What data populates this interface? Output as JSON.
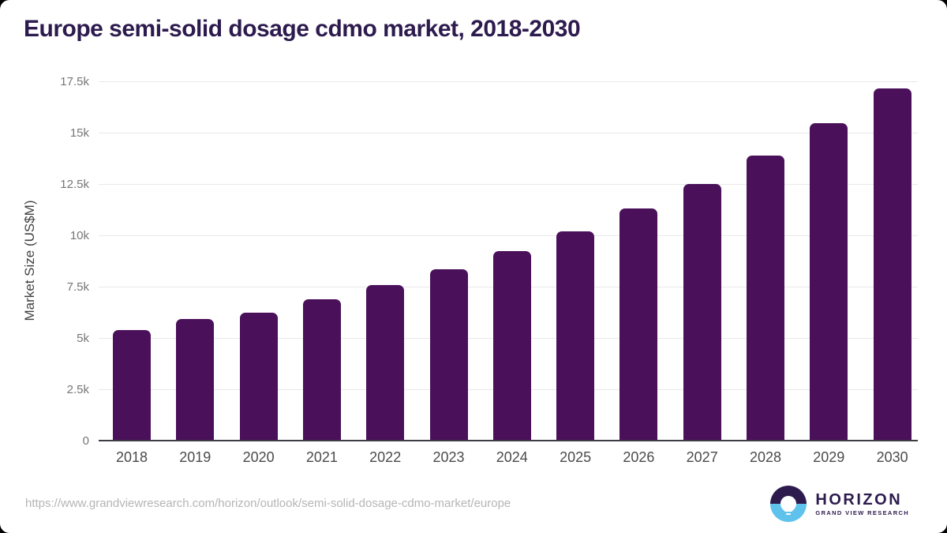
{
  "title": "Europe semi-solid dosage cdmo market, 2018-2030",
  "chart_data": {
    "type": "bar",
    "categories": [
      "2018",
      "2019",
      "2020",
      "2021",
      "2022",
      "2023",
      "2024",
      "2025",
      "2026",
      "2027",
      "2028",
      "2029",
      "2030"
    ],
    "values": [
      5370,
      5920,
      6250,
      6880,
      7590,
      8350,
      9220,
      10180,
      11310,
      12510,
      13870,
      15450,
      17170
    ],
    "title": "Europe semi-solid dosage cdmo market, 2018-2030",
    "xlabel": "",
    "ylabel": "Market Size (US$M)",
    "ylim": [
      0,
      17500
    ],
    "yticks": [
      0,
      2500,
      5000,
      7500,
      10000,
      12500,
      15000,
      17500
    ],
    "ytick_labels": [
      "0",
      "2.5k",
      "5k",
      "7.5k",
      "10k",
      "12.5k",
      "15k",
      "17.5k"
    ],
    "grid": true,
    "legend": false,
    "bar_color": "#4a115a"
  },
  "colors": {
    "title": "#2d1b4e",
    "bar": "#4a115a",
    "gridline": "#e9e9e9",
    "axis_line": "#3c3c42",
    "y_label": "#767676",
    "x_label": "#4b4b4b",
    "url": "#b5b5b5",
    "logo_purple": "#2d1b4e",
    "logo_blue": "#5ec2ec",
    "background": "#ffffff"
  },
  "footer": {
    "url": "https://www.grandviewresearch.com/horizon/outlook/semi-solid-dosage-cdmo-market/europe",
    "logo": {
      "brand": "HORIZON",
      "sub": "GRAND VIEW RESEARCH"
    }
  }
}
